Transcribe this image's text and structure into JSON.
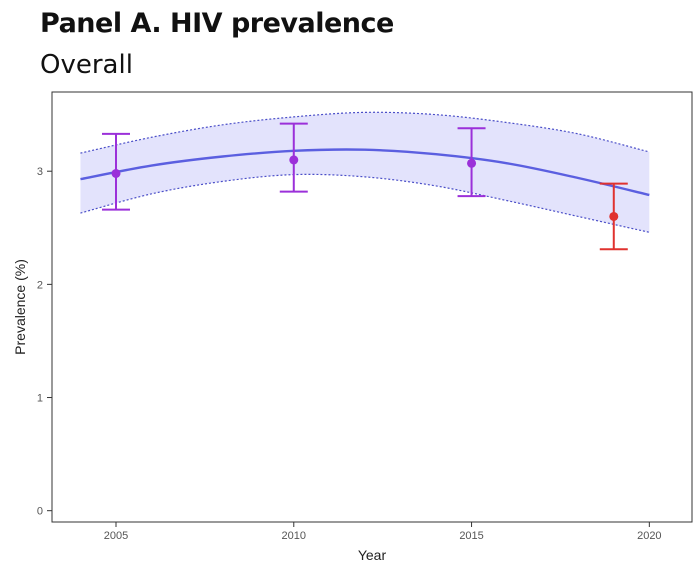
{
  "panel": {
    "title": "Panel A. HIV prevalence",
    "subtitle": "Overall"
  },
  "colors": {
    "fit_line": "#5b5fe0",
    "ci_band": "#e3e3fc",
    "ci_border": "#4b4fc8",
    "survey_point": "#9b30d9",
    "recent_point": "#e0322f",
    "axis": "#333333"
  },
  "chart_data": {
    "type": "line",
    "title": "",
    "xlabel": "Year",
    "ylabel": "Prevalence (%)",
    "xlim": [
      2003.2,
      2021.2
    ],
    "ylim": [
      -0.1,
      3.7
    ],
    "x_ticks": [
      2005,
      2010,
      2015,
      2020
    ],
    "y_ticks": [
      0,
      1,
      2,
      3
    ],
    "grid": false,
    "legend": "none",
    "fitted_trend": {
      "x": [
        2004,
        2006,
        2008,
        2010,
        2012,
        2014,
        2016,
        2018,
        2020
      ],
      "y": [
        2.93,
        3.05,
        3.13,
        3.18,
        3.19,
        3.15,
        3.07,
        2.94,
        2.79
      ],
      "ci_lower": [
        2.63,
        2.8,
        2.91,
        2.97,
        2.95,
        2.87,
        2.74,
        2.6,
        2.46
      ],
      "ci_upper": [
        3.16,
        3.3,
        3.41,
        3.48,
        3.52,
        3.5,
        3.43,
        3.33,
        3.17
      ]
    },
    "points": [
      {
        "x": 2005,
        "y": 2.98,
        "lower": 2.66,
        "upper": 3.33,
        "group": "survey"
      },
      {
        "x": 2010,
        "y": 3.1,
        "lower": 2.82,
        "upper": 3.42,
        "group": "survey"
      },
      {
        "x": 2015,
        "y": 3.07,
        "lower": 2.78,
        "upper": 3.38,
        "group": "survey"
      },
      {
        "x": 2019,
        "y": 2.6,
        "lower": 2.31,
        "upper": 2.89,
        "group": "recent"
      }
    ]
  }
}
